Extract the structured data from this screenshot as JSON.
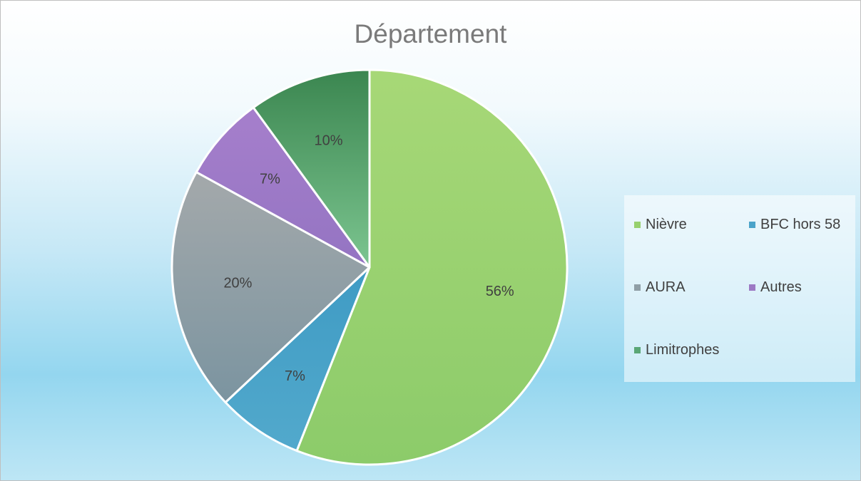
{
  "chart_data": {
    "type": "pie",
    "title": "Département",
    "categories": [
      "Nièvre",
      "BFC hors 58",
      "AURA",
      "Autres",
      "Limitrophes"
    ],
    "values": [
      56,
      7,
      20,
      7,
      10
    ],
    "value_labels": [
      "56%",
      "7%",
      "20%",
      "7%",
      "10%"
    ],
    "colors": [
      "#97d06e",
      "#4aa3c9",
      "#8f9ea6",
      "#9c79c4",
      "#5aa776"
    ],
    "legend_position": "right",
    "start_angle": "top, clockwise"
  }
}
